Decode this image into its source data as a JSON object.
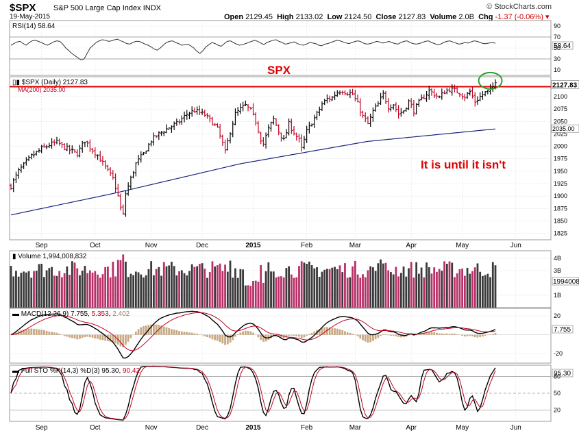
{
  "header": {
    "ticker": "$SPX",
    "name": "S&P 500 Large Cap Index",
    "exchange": "INDX",
    "date": "19-May-2015",
    "brand": "© StockCharts.com",
    "open_label": "Open",
    "open": "2129.45",
    "high_label": "High",
    "high": "2133.02",
    "low_label": "Low",
    "low": "2124.50",
    "close_label": "Close",
    "close": "2127.83",
    "volume_label": "Volume",
    "volume": "2.0B",
    "chg_label": "Chg",
    "chg": "-1.37 (-0.06%)"
  },
  "annotations": {
    "title": "SPX",
    "note": "It is until it isn't"
  },
  "colors": {
    "up": "#000000",
    "down": "#c00020",
    "ma": "#1a237e",
    "resistance": "#e00000",
    "circle": "#2e9e2e",
    "vol_up": "#3a3a3a",
    "vol_down": "#b83068",
    "macd": "#000000",
    "signal": "#c00020",
    "hist": "#c9a882"
  },
  "chart_data": [
    {
      "type": "line",
      "panel": "rsi",
      "label": "RSI(14) 58.64",
      "current": "58.64",
      "ylim": [
        0,
        100
      ],
      "ticks": [
        10,
        30,
        50,
        70,
        90
      ],
      "ref_lines": [
        30,
        70
      ],
      "values": [
        55,
        58,
        61,
        62,
        58,
        55,
        60,
        63,
        64,
        62,
        60,
        57,
        55,
        58,
        61,
        63,
        62,
        57,
        50,
        45,
        40,
        36,
        32,
        28,
        30,
        40,
        50,
        55,
        60,
        63,
        65,
        64,
        62,
        63,
        65,
        66,
        63,
        61,
        58,
        57,
        60,
        62,
        62,
        60,
        57,
        55,
        52,
        48,
        46,
        50,
        55,
        60,
        62,
        63,
        60,
        58,
        55,
        56,
        57,
        54,
        50,
        44,
        40,
        45,
        52,
        56,
        60,
        58,
        55,
        53,
        58,
        62,
        63,
        60,
        57,
        55,
        56,
        58,
        60,
        62,
        64,
        62,
        59,
        56,
        60,
        62,
        64,
        65,
        62,
        60,
        57,
        58,
        60,
        61,
        58,
        56,
        55,
        57,
        60,
        59,
        58,
        55,
        54,
        57,
        58,
        60,
        62,
        64,
        63,
        61,
        59,
        58,
        60,
        62,
        63,
        61,
        58,
        57,
        58,
        60,
        62,
        61,
        59,
        60,
        62,
        60,
        58,
        57,
        60,
        62,
        63,
        60,
        58,
        57,
        58,
        60,
        62,
        63,
        60,
        58,
        56,
        57,
        60,
        62,
        63,
        61,
        59,
        57,
        58,
        60,
        59,
        61,
        63,
        62,
        60,
        58,
        58,
        59,
        60,
        58.64
      ]
    },
    {
      "type": "candlestick",
      "panel": "price",
      "label": "$SPX (Daily) 2127.83",
      "ma_label": "MA(200) 2035.00",
      "last_price": "2127.83",
      "ma_last": "2035.00",
      "resistance": 2120,
      "ylim": [
        1812,
        2140
      ],
      "ticks": [
        1825,
        1850,
        1875,
        1900,
        1925,
        1950,
        1975,
        2000,
        2025,
        2050,
        2075,
        2100
      ],
      "x_labels": [
        {
          "label": "Sep",
          "i": 12
        },
        {
          "label": "Oct",
          "i": 33
        },
        {
          "label": "Nov",
          "i": 55
        },
        {
          "label": "Dec",
          "i": 75
        },
        {
          "label": "2015",
          "i": 95
        },
        {
          "label": "Feb",
          "i": 116
        },
        {
          "label": "Mar",
          "i": 135
        },
        {
          "label": "Apr",
          "i": 157
        },
        {
          "label": "May",
          "i": 177
        },
        {
          "label": "Jun",
          "i": 198
        }
      ],
      "anchors": [
        [
          0,
          1920
        ],
        [
          3,
          1950
        ],
        [
          8,
          1980
        ],
        [
          12,
          1995
        ],
        [
          15,
          2003
        ],
        [
          18,
          2008
        ],
        [
          21,
          1998
        ],
        [
          24,
          1990
        ],
        [
          26,
          1985
        ],
        [
          29,
          2012
        ],
        [
          31,
          1998
        ],
        [
          34,
          1982
        ],
        [
          38,
          1950
        ],
        [
          40,
          1935
        ],
        [
          42,
          1900
        ],
        [
          43,
          1875
        ],
        [
          44,
          1862
        ],
        [
          45,
          1905
        ],
        [
          47,
          1935
        ],
        [
          49,
          1965
        ],
        [
          52,
          1985
        ],
        [
          55,
          2012
        ],
        [
          58,
          2025
        ],
        [
          62,
          2038
        ],
        [
          65,
          2045
        ],
        [
          69,
          2065
        ],
        [
          72,
          2072
        ],
        [
          74,
          2068
        ],
        [
          76,
          2063
        ],
        [
          79,
          2048
        ],
        [
          81,
          2035
        ],
        [
          83,
          2005
        ],
        [
          84,
          1988
        ],
        [
          86,
          2030
        ],
        [
          88,
          2065
        ],
        [
          90,
          2075
        ],
        [
          92,
          2082
        ],
        [
          94,
          2072
        ],
        [
          96,
          2050
        ],
        [
          98,
          2015
        ],
        [
          99,
          2005
        ],
        [
          101,
          2035
        ],
        [
          103,
          2055
        ],
        [
          105,
          2030
        ],
        [
          107,
          2012
        ],
        [
          109,
          2045
        ],
        [
          111,
          2028
        ],
        [
          113,
          2012
        ],
        [
          114,
          1995
        ],
        [
          116,
          2030
        ],
        [
          118,
          2048
        ],
        [
          120,
          2065
        ],
        [
          122,
          2085
        ],
        [
          124,
          2095
        ],
        [
          126,
          2098
        ],
        [
          128,
          2110
        ],
        [
          130,
          2112
        ],
        [
          132,
          2108
        ],
        [
          134,
          2105
        ],
        [
          136,
          2085
        ],
        [
          138,
          2060
        ],
        [
          140,
          2045
        ],
        [
          142,
          2070
        ],
        [
          144,
          2085
        ],
        [
          146,
          2105
        ],
        [
          148,
          2080
        ],
        [
          150,
          2085
        ],
        [
          152,
          2065
        ],
        [
          154,
          2072
        ],
        [
          156,
          2090
        ],
        [
          158,
          2072
        ],
        [
          160,
          2088
        ],
        [
          162,
          2100
        ],
        [
          164,
          2112
        ],
        [
          166,
          2105
        ],
        [
          168,
          2098
        ],
        [
          170,
          2110
        ],
        [
          172,
          2115
        ],
        [
          174,
          2112
        ],
        [
          176,
          2108
        ],
        [
          178,
          2100
        ],
        [
          180,
          2110
        ],
        [
          182,
          2090
        ],
        [
          184,
          2100
        ],
        [
          186,
          2108
        ],
        [
          188,
          2112
        ],
        [
          190,
          2127.83
        ]
      ],
      "ma200": [
        [
          0,
          1862
        ],
        [
          40,
          1905
        ],
        [
          90,
          1965
        ],
        [
          140,
          2010
        ],
        [
          190,
          2035
        ]
      ],
      "n": 191
    },
    {
      "type": "bar",
      "panel": "volume",
      "label": "Volume 1,994,008,832",
      "current": "1994008",
      "ylim": [
        0,
        4.6
      ],
      "ticks": [
        {
          "v": 1,
          "label": "1B"
        },
        {
          "v": 3,
          "label": "3B"
        },
        {
          "v": 4,
          "label": "4B"
        }
      ]
    },
    {
      "type": "line",
      "panel": "macd",
      "label": "MACD(12,26,9)",
      "macd_value": "7.755",
      "signal_value": "5.353",
      "hist_value": "2.402",
      "ylim": [
        -30,
        28
      ],
      "ticks": [
        {
          "v": 20,
          "label": "20"
        },
        {
          "v": -20,
          "label": "-20"
        }
      ]
    },
    {
      "type": "line",
      "panel": "sto",
      "label": "Full STO %K(14,3) %D(3)",
      "k_value": "95.30",
      "d_value": "90.42",
      "ylim": [
        0,
        100
      ],
      "ticks": [
        20,
        50,
        80
      ],
      "ref_lines": [
        20,
        50,
        80
      ]
    }
  ]
}
